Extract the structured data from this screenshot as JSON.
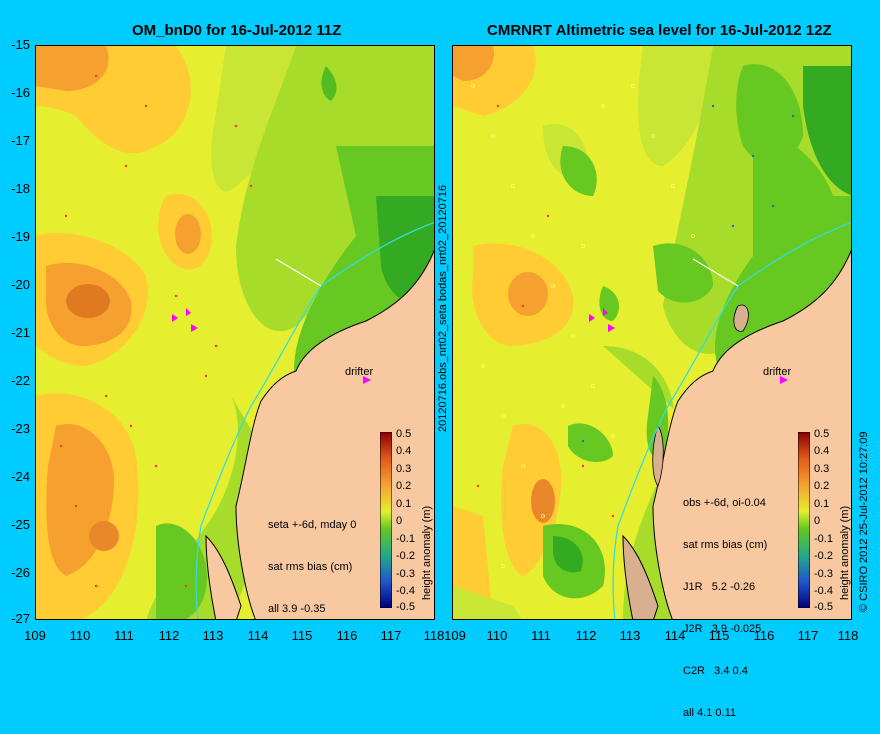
{
  "left_panel": {
    "title": "OM_bnD0 for 16-Jul-2012 11Z",
    "stats": [
      "seta +-6d, mday 0",
      "sat rms bias (cm)",
      "all 3.9 -0.35"
    ],
    "drifter_label": "drifter"
  },
  "right_panel": {
    "title": "CMRNRT Altimetric sea level  for 16-Jul-2012 12Z",
    "stats": [
      "obs +-6d, oi-0.04",
      "sat rms bias (cm)",
      "J1R   5.2 -0.26",
      "J2R   3.9 -0.025",
      "C2R   3.4 0.4",
      "all 4.1 0.11"
    ],
    "drifter_label": "drifter"
  },
  "sidebar_label": "20120716.obs_nrt02_seta    bodas_nrt02_20120716",
  "copyright": "© CSIRO 2012   25-Jul-2012 10:27:09",
  "y_ticks": [
    "-15",
    "-16",
    "-17",
    "-18",
    "-19",
    "-20",
    "-21",
    "-22",
    "-23",
    "-24",
    "-25",
    "-26",
    "-27"
  ],
  "x_ticks": [
    "109",
    "110",
    "111",
    "112",
    "113",
    "114",
    "115",
    "116",
    "117",
    "118"
  ],
  "colorbar": {
    "title": "height anomaly (m)",
    "ticks": [
      "0.5",
      "0.4",
      "0.3",
      "0.2",
      "0.1",
      "0",
      "-0.1",
      "-0.2",
      "-0.3",
      "-0.4",
      "-0.5"
    ]
  },
  "colors": {
    "background": "#00ccff",
    "land": "#f8c8a0",
    "coastline": "#000000",
    "isobath": "#33dddd",
    "drifter_marker": "#ff00ff"
  }
}
